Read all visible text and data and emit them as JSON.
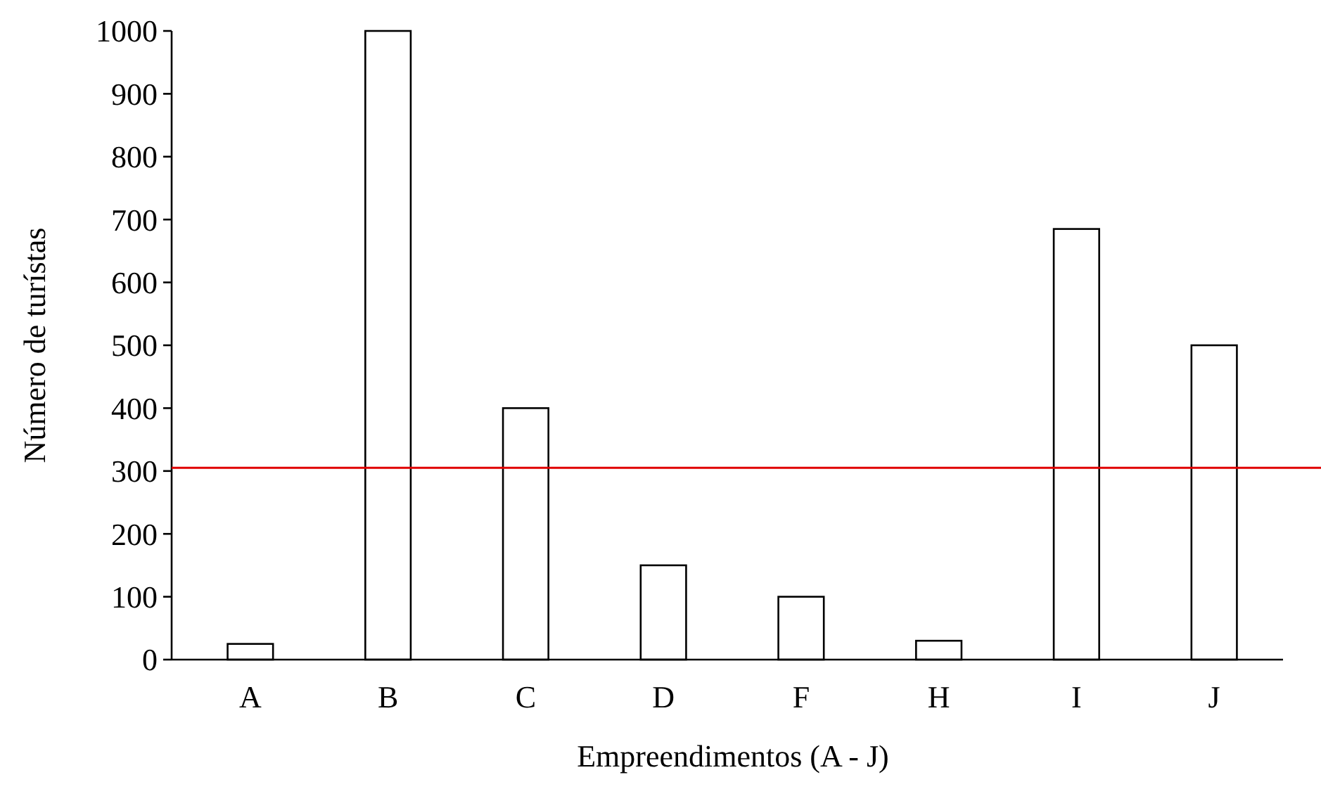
{
  "chart_data": {
    "type": "bar",
    "xlabel": "Empreendimentos (A - J)",
    "ylabel": "Número de turístas",
    "categories": [
      "A",
      "B",
      "C",
      "D",
      "F",
      "H",
      "I",
      "J"
    ],
    "values": [
      25,
      1000,
      400,
      150,
      100,
      30,
      685,
      500
    ],
    "color": "#ffffff",
    "ylim": [
      0,
      1000
    ],
    "yticks": [
      0,
      100,
      200,
      300,
      400,
      500,
      600,
      700,
      800,
      900,
      1000
    ],
    "ref_lines": [
      {
        "axis": "y",
        "value": 305,
        "color": "#e00000"
      }
    ]
  }
}
